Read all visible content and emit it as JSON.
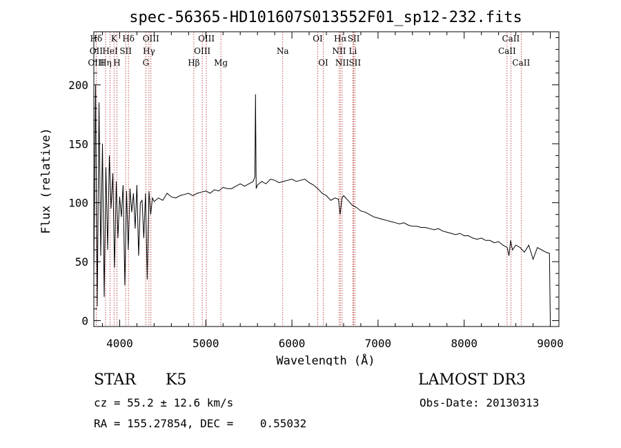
{
  "chart_data": {
    "type": "line",
    "title": "spec-56365-HD101607S013552F01_sp12-232.fits",
    "xlabel": "Wavelength (Å)",
    "ylabel": "Flux (relative)",
    "xlim": [
      3700,
      9100
    ],
    "ylim": [
      -5,
      245
    ],
    "xticks": [
      4000,
      5000,
      6000,
      7000,
      8000,
      9000
    ],
    "yticks": [
      0,
      50,
      100,
      150,
      200
    ],
    "grid": false,
    "series": [
      {
        "name": "spectrum",
        "x": [
          3700,
          3720,
          3740,
          3760,
          3780,
          3800,
          3820,
          3840,
          3860,
          3880,
          3900,
          3920,
          3940,
          3960,
          3980,
          4000,
          4020,
          4040,
          4060,
          4080,
          4100,
          4120,
          4140,
          4160,
          4180,
          4200,
          4220,
          4240,
          4260,
          4280,
          4300,
          4320,
          4340,
          4360,
          4380,
          4400,
          4450,
          4500,
          4550,
          4600,
          4650,
          4700,
          4750,
          4800,
          4850,
          4900,
          4950,
          5000,
          5050,
          5100,
          5150,
          5200,
          5250,
          5300,
          5350,
          5400,
          5450,
          5500,
          5550,
          5570,
          5577,
          5585,
          5600,
          5650,
          5700,
          5750,
          5800,
          5850,
          5900,
          5950,
          6000,
          6050,
          6100,
          6150,
          6200,
          6250,
          6300,
          6350,
          6400,
          6450,
          6500,
          6540,
          6560,
          6580,
          6600,
          6650,
          6700,
          6750,
          6800,
          6850,
          6900,
          6950,
          7000,
          7050,
          7100,
          7150,
          7200,
          7250,
          7300,
          7350,
          7400,
          7450,
          7500,
          7550,
          7600,
          7650,
          7700,
          7750,
          7800,
          7850,
          7900,
          7950,
          8000,
          8050,
          8100,
          8150,
          8200,
          8250,
          8300,
          8350,
          8400,
          8450,
          8500,
          8520,
          8540,
          8560,
          8600,
          8650,
          8700,
          8750,
          8800,
          8850,
          8900,
          8950,
          8990,
          9000
        ],
        "y": [
          40,
          200,
          12,
          185,
          55,
          150,
          20,
          130,
          60,
          140,
          95,
          125,
          45,
          118,
          70,
          105,
          88,
          115,
          30,
          110,
          60,
          112,
          92,
          108,
          78,
          115,
          55,
          100,
          102,
          70,
          108,
          35,
          110,
          90,
          104,
          101,
          104,
          102,
          108,
          105,
          104,
          106,
          107,
          108,
          106,
          108,
          109,
          110,
          108,
          111,
          110,
          113,
          112,
          112,
          114,
          116,
          114,
          116,
          118,
          122,
          192,
          112,
          115,
          118,
          116,
          120,
          119,
          117,
          118,
          119,
          120,
          118,
          119,
          120,
          117,
          115,
          112,
          108,
          106,
          102,
          104,
          103,
          90,
          104,
          106,
          102,
          98,
          96,
          93,
          92,
          90,
          88,
          87,
          86,
          85,
          84,
          83,
          82,
          83,
          81,
          80,
          80,
          79,
          79,
          78,
          77,
          78,
          76,
          75,
          74,
          73,
          74,
          72,
          72,
          70,
          69,
          70,
          68,
          68,
          66,
          67,
          64,
          62,
          55,
          68,
          60,
          64,
          62,
          58,
          64,
          52,
          62,
          60,
          58,
          57,
          0
        ]
      }
    ],
    "lines": [
      {
        "name": "Hδ",
        "x": 3727,
        "row": 0
      },
      {
        "name": "K",
        "x": 3934,
        "row": 0
      },
      {
        "name": "Hδ",
        "x": 4102,
        "row": 0
      },
      {
        "name": "OIII",
        "x": 4363,
        "row": 0
      },
      {
        "name": "OIII",
        "x": 5007,
        "row": 0
      },
      {
        "name": "OI",
        "x": 6300,
        "row": 0
      },
      {
        "name": "Hα",
        "x": 6563,
        "row": 0
      },
      {
        "name": "SII",
        "x": 6717,
        "row": 0
      },
      {
        "name": "CaII",
        "x": 8542,
        "row": 0
      },
      {
        "name": "OII",
        "x": 3727,
        "row": 1
      },
      {
        "name": "HeI",
        "x": 3889,
        "row": 1
      },
      {
        "name": "SII",
        "x": 4070,
        "row": 1
      },
      {
        "name": "Hγ",
        "x": 4340,
        "row": 1
      },
      {
        "name": "OIII",
        "x": 4959,
        "row": 1
      },
      {
        "name": "Na",
        "x": 5893,
        "row": 1
      },
      {
        "name": "NII",
        "x": 6548,
        "row": 1
      },
      {
        "name": "Li",
        "x": 6708,
        "row": 1
      },
      {
        "name": "CaII",
        "x": 8498,
        "row": 1
      },
      {
        "name": "OIII",
        "x": 3727,
        "row": 2
      },
      {
        "name": "Hη",
        "x": 3835,
        "row": 2
      },
      {
        "name": "H",
        "x": 3968,
        "row": 2
      },
      {
        "name": "G",
        "x": 4304,
        "row": 2
      },
      {
        "name": "Hβ",
        "x": 4861,
        "row": 2
      },
      {
        "name": "Mg",
        "x": 5175,
        "row": 2
      },
      {
        "name": "OI",
        "x": 6364,
        "row": 2
      },
      {
        "name": "NII",
        "x": 6583,
        "row": 2
      },
      {
        "name": "SII",
        "x": 6731,
        "row": 2
      },
      {
        "name": "CaII",
        "x": 8662,
        "row": 2
      }
    ]
  },
  "info": {
    "object_class": "STAR",
    "subclass": "K5",
    "survey": "LAMOST DR3",
    "cz": "cz = 55.2 ± 12.6 km/s",
    "obs_date": "Obs-Date: 20130313",
    "coords": "RA = 155.27854, DEC =    0.55032"
  }
}
